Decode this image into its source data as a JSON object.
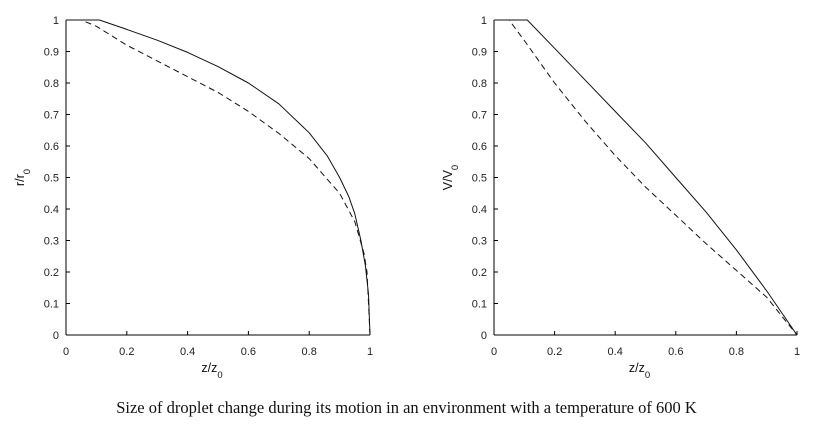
{
  "caption": "Size of droplet change during its motion in an environment with a temperature of 600 K",
  "chart_data": [
    {
      "type": "line",
      "title": "",
      "xlabel": {
        "base": "z/z",
        "sub": "0"
      },
      "ylabel": {
        "base": "r/r",
        "sub": "0"
      },
      "xlim": [
        0,
        1
      ],
      "ylim": [
        0,
        1
      ],
      "xticks": [
        "0",
        "0.2",
        "0.4",
        "0.6",
        "0.8",
        "1"
      ],
      "yticks": [
        "0",
        "0.1",
        "0.2",
        "0.3",
        "0.4",
        "0.5",
        "0.6",
        "0.7",
        "0.8",
        "0.9",
        "1"
      ],
      "grid": false,
      "series": [
        {
          "style": "solid",
          "x": [
            0,
            0.11,
            0.2,
            0.3,
            0.4,
            0.5,
            0.6,
            0.7,
            0.8,
            0.86,
            0.9,
            0.93,
            0.95,
            0.97,
            0.985,
            0.995,
            1.0
          ],
          "y": [
            1,
            1,
            0.97,
            0.936,
            0.897,
            0.852,
            0.8,
            0.734,
            0.642,
            0.568,
            0.5,
            0.44,
            0.385,
            0.3,
            0.22,
            0.13,
            0
          ]
        },
        {
          "style": "dashed",
          "x": [
            0,
            0.05,
            0.1,
            0.2,
            0.3,
            0.4,
            0.5,
            0.6,
            0.7,
            0.8,
            0.9,
            0.95,
            0.98,
            0.99,
            1.0
          ],
          "y": [
            1,
            1,
            0.98,
            0.92,
            0.87,
            0.82,
            0.77,
            0.71,
            0.64,
            0.56,
            0.45,
            0.36,
            0.26,
            0.2,
            0
          ]
        }
      ]
    },
    {
      "type": "line",
      "title": "",
      "xlabel": {
        "base": "z/z",
        "sub": "0"
      },
      "ylabel": {
        "base": "V/V",
        "sub": "0"
      },
      "xlim": [
        0,
        1
      ],
      "ylim": [
        0,
        1
      ],
      "xticks": [
        "0",
        "0.2",
        "0.4",
        "0.6",
        "0.8",
        "1"
      ],
      "yticks": [
        "0",
        "0.1",
        "0.2",
        "0.3",
        "0.4",
        "0.5",
        "0.6",
        "0.7",
        "0.8",
        "0.9",
        "1"
      ],
      "grid": false,
      "series": [
        {
          "style": "solid",
          "x": [
            0,
            0.11,
            0.2,
            0.3,
            0.4,
            0.5,
            0.6,
            0.7,
            0.8,
            0.9,
            0.95,
            1.0
          ],
          "y": [
            1,
            1,
            0.91,
            0.81,
            0.71,
            0.61,
            0.5,
            0.39,
            0.27,
            0.14,
            0.07,
            0
          ]
        },
        {
          "style": "dashed",
          "x": [
            0,
            0.05,
            0.1,
            0.2,
            0.3,
            0.4,
            0.5,
            0.6,
            0.7,
            0.8,
            0.9,
            0.95,
            1.0
          ],
          "y": [
            1,
            1,
            0.935,
            0.8,
            0.68,
            0.57,
            0.47,
            0.38,
            0.29,
            0.205,
            0.12,
            0.06,
            0
          ]
        }
      ]
    }
  ]
}
